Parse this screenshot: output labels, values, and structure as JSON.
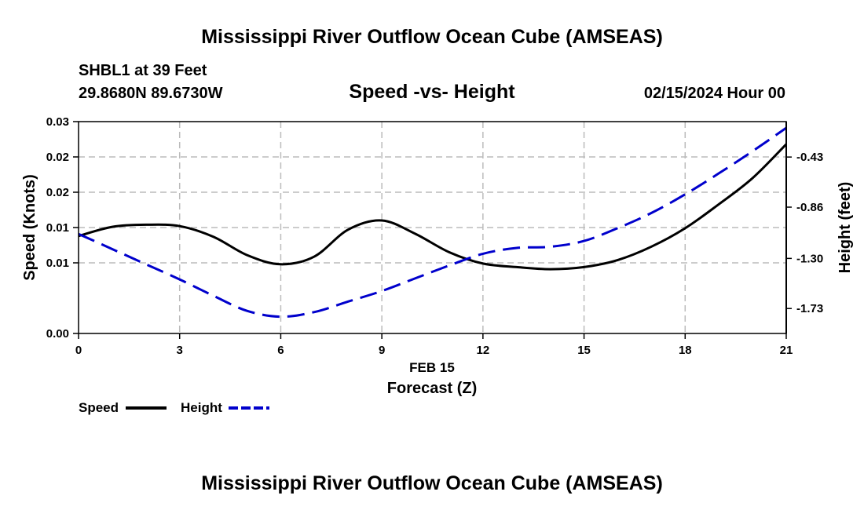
{
  "header": {
    "title": "Mississippi River Outflow Ocean Cube (AMSEAS)",
    "station": "SHBL1 at 39 Feet",
    "coords": "29.8680N  89.6730W",
    "date": "02/15/2024 Hour 00"
  },
  "footer": {
    "title": "Mississippi River Outflow Ocean Cube (AMSEAS)"
  },
  "chart_data": {
    "type": "line",
    "title": "Speed -vs- Height",
    "xlabel": "Forecast (Z)",
    "xdate_label": "FEB 15",
    "ylabel": "Speed (Knots)",
    "y2label": "Height (feet)",
    "xlim": [
      0,
      21
    ],
    "ylim": [
      0,
      0.03
    ],
    "y2lim": [
      -1.944,
      -0.126
    ],
    "grid": true,
    "x_ticks": [
      0,
      3,
      6,
      9,
      12,
      15,
      18,
      21
    ],
    "x_tick_labels": [
      "0",
      "3",
      "6",
      "9",
      "12",
      "15",
      "18",
      "21"
    ],
    "y_ticks": [
      0,
      0.01,
      0.015,
      0.02,
      0.025,
      0.03
    ],
    "y_tick_labels": [
      "0.00",
      "0.01",
      "0.01",
      "0.02",
      "0.02",
      "0.03"
    ],
    "y2_ticks": [
      -1.73,
      -1.3,
      -0.86,
      -0.43
    ],
    "y2_tick_labels": [
      "-1.73",
      "-1.30",
      "-0.86",
      "-0.43"
    ],
    "series": [
      {
        "name": "Speed",
        "axis": "left",
        "color": "#000000",
        "dash": "solid",
        "x": [
          0,
          1,
          2,
          3,
          4,
          5,
          6,
          7,
          8,
          9,
          10,
          11,
          12,
          13,
          14,
          15,
          16,
          17,
          18,
          19,
          20,
          21
        ],
        "y": [
          0.0138,
          0.0151,
          0.0154,
          0.0152,
          0.0137,
          0.0111,
          0.0098,
          0.0109,
          0.0147,
          0.016,
          0.0141,
          0.0115,
          0.0099,
          0.0094,
          0.0091,
          0.0094,
          0.0104,
          0.0123,
          0.0149,
          0.0183,
          0.022,
          0.0268
        ]
      },
      {
        "name": "Height",
        "axis": "right",
        "color": "#0000cc",
        "dash": "dashed",
        "x": [
          0,
          1,
          2,
          3,
          4,
          5,
          6,
          7,
          8,
          9,
          10,
          11,
          12,
          13,
          14,
          15,
          16,
          17,
          18,
          19,
          20,
          21
        ],
        "y": [
          -1.09,
          -1.22,
          -1.35,
          -1.48,
          -1.62,
          -1.75,
          -1.8,
          -1.76,
          -1.67,
          -1.58,
          -1.47,
          -1.36,
          -1.26,
          -1.21,
          -1.2,
          -1.15,
          -1.04,
          -0.91,
          -0.75,
          -0.57,
          -0.38,
          -0.18
        ]
      }
    ],
    "legend": {
      "position": "bottom-left",
      "items": [
        {
          "label": "Speed",
          "color": "#000000",
          "dash": "solid"
        },
        {
          "label": "Height",
          "color": "#0000cc",
          "dash": "dashed"
        }
      ]
    }
  }
}
